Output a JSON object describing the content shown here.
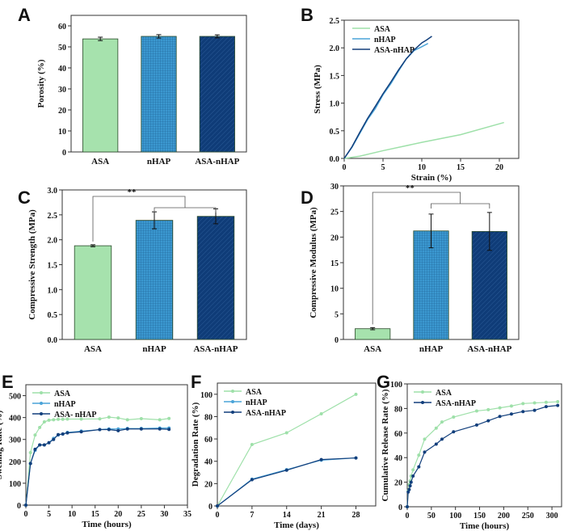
{
  "colors": {
    "ASA": "#a6e2ad",
    "nHAP": "#3b98d0",
    "ASA-nHAP": "#0f3c78",
    "ASA_line": "#9ee0a9",
    "nHAP_line": "#4aa3d8",
    "ASA-nHAP_line": "#123f7c"
  },
  "chart_data": [
    {
      "panel": "A",
      "type": "bar",
      "categories": [
        "ASA",
        "nHAP",
        "ASA-nHAP"
      ],
      "values": [
        53.8,
        55.0,
        55.0
      ],
      "errors": [
        0.8,
        0.8,
        0.7
      ],
      "ylabel": "Porosity (%)",
      "ylim": [
        0,
        65
      ],
      "yticks": [
        0,
        10,
        20,
        30,
        40,
        50,
        60
      ],
      "patterns": [
        "solid",
        "grid",
        "diagonal-hatch"
      ]
    },
    {
      "panel": "B",
      "type": "line",
      "xlabel": "Strain (%)",
      "ylabel": "Stress (MPa)",
      "xlim": [
        0,
        22.5
      ],
      "ylim": [
        0,
        2.5
      ],
      "xticks": [
        0,
        5,
        10,
        15,
        20
      ],
      "yticks": [
        0.0,
        0.5,
        1.0,
        1.5,
        2.0,
        2.5
      ],
      "legend": "top-left",
      "markers": false,
      "series": [
        {
          "name": "ASA",
          "x": [
            0,
            2,
            5,
            10,
            15,
            20.6
          ],
          "y": [
            0,
            0.04,
            0.14,
            0.29,
            0.43,
            0.65
          ]
        },
        {
          "name": "nHAP",
          "x": [
            0,
            1,
            2,
            3,
            4,
            5,
            6,
            7,
            8,
            9,
            10,
            10.8
          ],
          "y": [
            0,
            0.2,
            0.45,
            0.7,
            0.9,
            1.15,
            1.35,
            1.58,
            1.8,
            1.95,
            2.02,
            2.08
          ]
        },
        {
          "name": "ASA-nHAP",
          "x": [
            0,
            1,
            2,
            3,
            4,
            5,
            6,
            7,
            8,
            9,
            10,
            10.6,
            11.3
          ],
          "y": [
            0,
            0.21,
            0.47,
            0.72,
            0.94,
            1.17,
            1.38,
            1.6,
            1.8,
            1.96,
            2.09,
            2.14,
            2.21
          ]
        }
      ]
    },
    {
      "panel": "C",
      "type": "bar",
      "categories": [
        "ASA",
        "nHAP",
        "ASA-nHAP"
      ],
      "values": [
        1.88,
        2.39,
        2.47
      ],
      "errors": [
        0.02,
        0.17,
        0.15
      ],
      "ylabel": "Compressive Strength (MPa)",
      "ylim": [
        0,
        3.0
      ],
      "yticks": [
        0.0,
        0.5,
        1.0,
        1.5,
        2.0,
        2.5,
        3.0
      ],
      "patterns": [
        "solid",
        "grid",
        "diagonal-hatch"
      ],
      "significance": "**"
    },
    {
      "panel": "D",
      "type": "bar",
      "categories": [
        "ASA",
        "nHAP",
        "ASA-nHAP"
      ],
      "values": [
        2.1,
        21.2,
        21.1
      ],
      "errors": [
        0.2,
        3.3,
        3.7
      ],
      "ylabel": "Compressive Modulus (MPa)",
      "ylim": [
        0,
        30
      ],
      "yticks": [
        0,
        5,
        10,
        15,
        20,
        25,
        30
      ],
      "patterns": [
        "solid",
        "grid",
        "diagonal-hatch"
      ],
      "significance": "**"
    },
    {
      "panel": "E",
      "type": "line",
      "xlabel": "Time (hours)",
      "ylabel": "Swelling Rate (%)",
      "xlim": [
        0,
        35
      ],
      "ylim": [
        0,
        550
      ],
      "xticks": [
        0,
        5,
        10,
        15,
        20,
        25,
        30,
        35
      ],
      "yticks": [
        0,
        100,
        200,
        300,
        400,
        500
      ],
      "legend": "top-left",
      "markers": true,
      "series": [
        {
          "name": "ASA",
          "x": [
            0,
            1,
            2,
            3,
            4,
            5,
            6,
            7,
            8,
            9,
            12,
            16,
            18,
            20,
            22,
            25,
            29,
            31
          ],
          "y": [
            0,
            240,
            320,
            355,
            380,
            388,
            390,
            392,
            392,
            393,
            393,
            394,
            402,
            398,
            390,
            395,
            390,
            396
          ]
        },
        {
          "name": "nHAP",
          "x": [
            0,
            1,
            2,
            3,
            4,
            5,
            6,
            7,
            8,
            9,
            12,
            16,
            18,
            20,
            22,
            25,
            29,
            31
          ],
          "y": [
            0,
            190,
            250,
            275,
            275,
            285,
            305,
            320,
            325,
            332,
            338,
            345,
            348,
            348,
            350,
            350,
            352,
            352
          ]
        },
        {
          "name": "ASA- nHAP",
          "x": [
            0,
            1,
            2,
            3,
            4,
            5,
            6,
            7,
            8,
            9,
            12,
            16,
            18,
            20,
            22,
            25,
            29,
            31
          ],
          "y": [
            0,
            190,
            255,
            275,
            275,
            285,
            300,
            322,
            325,
            330,
            335,
            345,
            345,
            340,
            348,
            348,
            348,
            346
          ]
        }
      ]
    },
    {
      "panel": "F",
      "type": "line",
      "xlabel": "Time (days)",
      "ylabel": "Degradation Rate (%)",
      "xlim": [
        0,
        32
      ],
      "ylim": [
        0,
        110
      ],
      "xticks": [
        0,
        7,
        14,
        21,
        28
      ],
      "yticks": [
        0,
        20,
        40,
        60,
        80,
        100
      ],
      "legend": "top-left",
      "markers": true,
      "series": [
        {
          "name": "ASA",
          "x": [
            0,
            7,
            14,
            21,
            28
          ],
          "y": [
            0,
            55,
            65.5,
            82.5,
            100
          ]
        },
        {
          "name": "nHAP",
          "x": [
            0,
            7,
            14,
            21,
            28
          ],
          "y": [
            0,
            24,
            32.5,
            41,
            43
          ]
        },
        {
          "name": "ASA-nHAP",
          "x": [
            0,
            7,
            14,
            21,
            28
          ],
          "y": [
            0,
            23.5,
            32,
            41.5,
            43
          ]
        }
      ]
    },
    {
      "panel": "G",
      "type": "line",
      "xlabel": "Time (hours)",
      "ylabel": "Cumulative Release Rate (%)",
      "xlim": [
        0,
        320
      ],
      "ylim": [
        0,
        100
      ],
      "xticks": [
        0,
        50,
        100,
        150,
        200,
        250,
        300
      ],
      "yticks": [
        0,
        20,
        40,
        60,
        80,
        100
      ],
      "legend": "top-left",
      "markers": true,
      "series": [
        {
          "name": "ASA",
          "x": [
            0,
            2,
            4,
            6,
            8,
            12,
            24,
            36,
            60,
            72,
            96,
            144,
            168,
            192,
            216,
            240,
            264,
            288,
            312
          ],
          "y": [
            0,
            13,
            18,
            21,
            25,
            30,
            42,
            55,
            64,
            69,
            73,
            78,
            79,
            80.5,
            82,
            84,
            84.5,
            85,
            85.5
          ]
        },
        {
          "name": "ASA-nHAP",
          "x": [
            0,
            2,
            4,
            6,
            8,
            12,
            24,
            36,
            60,
            72,
            96,
            144,
            168,
            192,
            216,
            240,
            264,
            288,
            312
          ],
          "y": [
            0,
            12,
            14,
            17,
            20,
            25,
            32.5,
            44.5,
            51,
            55,
            61,
            66.5,
            70,
            73.5,
            75.5,
            77.5,
            78.5,
            81.5,
            82.5
          ]
        }
      ]
    }
  ]
}
